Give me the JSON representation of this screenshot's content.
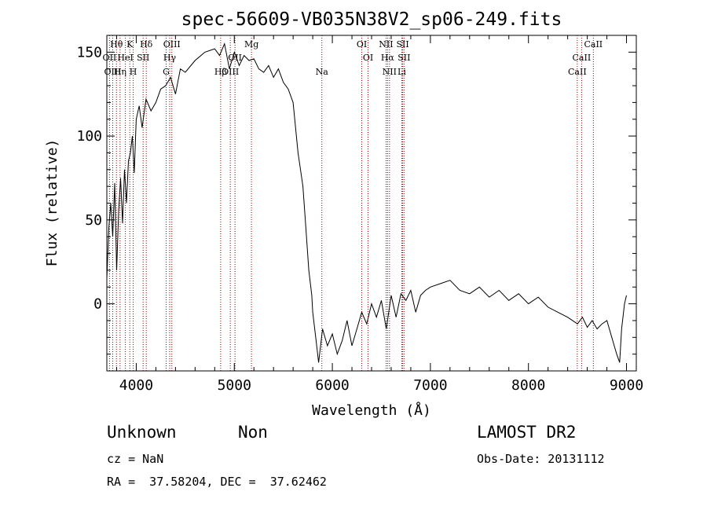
{
  "chart_data": {
    "type": "line",
    "title": "spec-56609-VB035N38V2_sp06-249.fits",
    "xlabel": "Wavelength (Å)",
    "ylabel": "Flux (relative)",
    "xlim": [
      3700,
      9100
    ],
    "ylim": [
      -40,
      160
    ],
    "x_ticks": [
      4000,
      5000,
      6000,
      7000,
      8000,
      9000
    ],
    "x_tick_labels": [
      "4000",
      "5000",
      "6000",
      "7000",
      "8000",
      "9000"
    ],
    "y_ticks": [
      0,
      50,
      100,
      150
    ],
    "y_tick_labels": [
      "0",
      "50",
      "100",
      "150"
    ],
    "grid": false,
    "line_color": "#000000",
    "marker_color": "#8b0000",
    "spectrum": {
      "x": [
        3700,
        3720,
        3740,
        3760,
        3780,
        3800,
        3820,
        3840,
        3860,
        3880,
        3900,
        3920,
        3940,
        3960,
        3980,
        4000,
        4030,
        4060,
        4100,
        4150,
        4200,
        4250,
        4300,
        4350,
        4400,
        4450,
        4500,
        4600,
        4700,
        4800,
        4850,
        4900,
        4950,
        5000,
        5050,
        5100,
        5150,
        5200,
        5250,
        5300,
        5350,
        5400,
        5450,
        5500,
        5550,
        5600,
        5650,
        5700,
        5730,
        5760,
        5790,
        5800,
        5830,
        5860,
        5900,
        5950,
        6000,
        6050,
        6100,
        6150,
        6200,
        6250,
        6300,
        6350,
        6400,
        6450,
        6500,
        6550,
        6600,
        6650,
        6700,
        6750,
        6800,
        6850,
        6900,
        6950,
        7000,
        7100,
        7200,
        7300,
        7400,
        7500,
        7600,
        7700,
        7800,
        7900,
        8000,
        8100,
        8200,
        8300,
        8400,
        8450,
        8500,
        8550,
        8600,
        8650,
        8700,
        8750,
        8800,
        8850,
        8900,
        8930,
        8950,
        8980,
        9000
      ],
      "y": [
        15,
        45,
        60,
        40,
        72,
        20,
        55,
        75,
        48,
        80,
        60,
        85,
        90,
        100,
        78,
        110,
        118,
        105,
        122,
        115,
        120,
        128,
        130,
        135,
        125,
        140,
        138,
        145,
        150,
        152,
        148,
        155,
        140,
        150,
        142,
        148,
        145,
        146,
        140,
        138,
        142,
        135,
        140,
        132,
        128,
        120,
        90,
        70,
        45,
        20,
        5,
        -5,
        -20,
        -35,
        -15,
        -25,
        -18,
        -30,
        -22,
        -10,
        -25,
        -15,
        -5,
        -12,
        0,
        -8,
        2,
        -15,
        5,
        -8,
        6,
        2,
        8,
        -5,
        5,
        8,
        10,
        12,
        14,
        8,
        6,
        10,
        4,
        8,
        2,
        6,
        0,
        4,
        -2,
        -5,
        -8,
        -10,
        -12,
        -8,
        -14,
        -10,
        -15,
        -12,
        -10,
        -20,
        -30,
        -35,
        -15,
        0,
        5
      ]
    },
    "line_markers": [
      {
        "label": "Hθ",
        "x": 3798,
        "row": 0
      },
      {
        "label": "OII",
        "x": 3727,
        "row": 1
      },
      {
        "label": "OIII",
        "x": 3760,
        "row": 2
      },
      {
        "label": "Hη",
        "x": 3835,
        "row": 2
      },
      {
        "label": "K",
        "x": 3934,
        "row": 0
      },
      {
        "label": "HeI",
        "x": 3889,
        "row": 1
      },
      {
        "label": "SII",
        "x": 4070,
        "row": 1
      },
      {
        "label": "H",
        "x": 3969,
        "row": 2
      },
      {
        "label": "Hδ",
        "x": 4102,
        "row": 0
      },
      {
        "label": "OIII",
        "x": 4363,
        "row": 0
      },
      {
        "label": "Hγ",
        "x": 4341,
        "row": 1
      },
      {
        "label": "G",
        "x": 4305,
        "row": 2
      },
      {
        "label": "Mg",
        "x": 5175,
        "row": 0
      },
      {
        "label": "OII",
        "x": 5007,
        "row": 1
      },
      {
        "label": "Hβ",
        "x": 4861,
        "row": 2
      },
      {
        "label": "OIII",
        "x": 4959,
        "row": 2
      },
      {
        "label": "Na",
        "x": 5893,
        "row": 2
      },
      {
        "label": "OI",
        "x": 6300,
        "row": 0
      },
      {
        "label": "OI",
        "x": 6364,
        "row": 1
      },
      {
        "label": "NII",
        "x": 6548,
        "row": 0
      },
      {
        "label": "SII",
        "x": 6717,
        "row": 0
      },
      {
        "label": "Hα",
        "x": 6563,
        "row": 1
      },
      {
        "label": "SII",
        "x": 6731,
        "row": 1
      },
      {
        "label": "NII",
        "x": 6583,
        "row": 2
      },
      {
        "label": "Li",
        "x": 6708,
        "row": 2
      },
      {
        "label": "CaII",
        "x": 8662,
        "row": 0
      },
      {
        "label": "CaII",
        "x": 8542,
        "row": 1
      },
      {
        "label": "CaII",
        "x": 8498,
        "row": 2
      }
    ]
  },
  "info": {
    "object_class": "Unknown",
    "subclass": "Non",
    "survey": "LAMOST DR2",
    "cz": "cz = NaN",
    "obs_date": "Obs-Date: 20131112",
    "coords": "RA =  37.58204, DEC =  37.62462"
  }
}
